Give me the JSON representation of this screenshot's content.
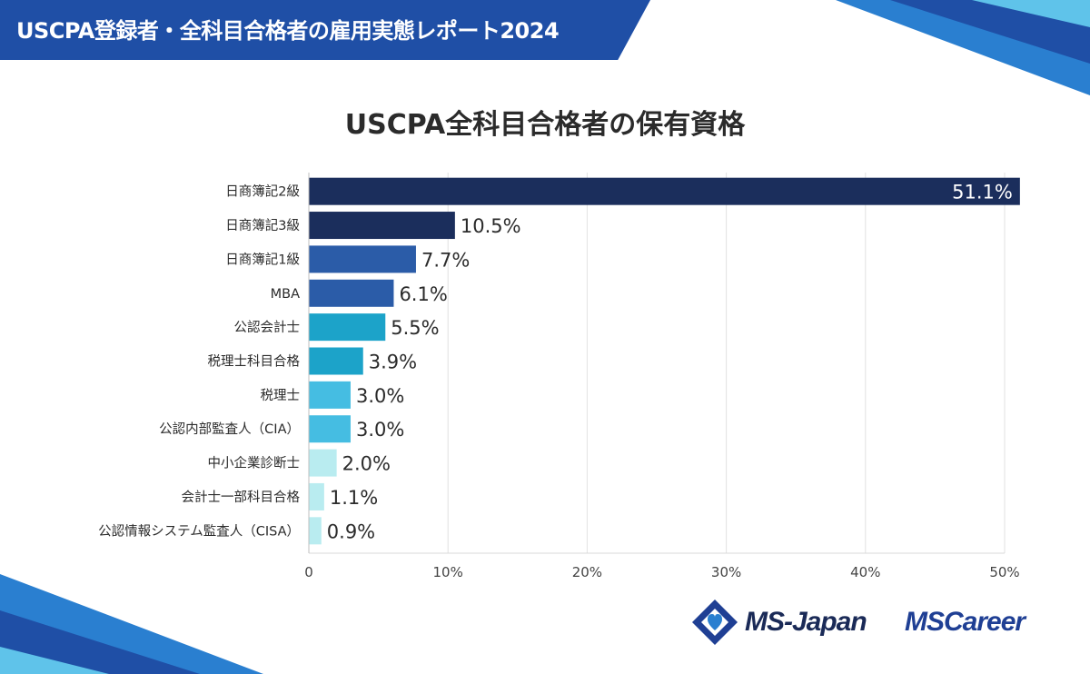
{
  "header": {
    "banner_title": "USCPA登録者・全科目合格者の雇用実態レポート2024"
  },
  "logos": {
    "ms_japan": "MS-Japan",
    "ms_career": "MSCareer"
  },
  "colors": {
    "banner": "#1f4fa6",
    "navy": "#1b2e5c",
    "blue": "#2b5ca8",
    "teal": "#1ca3c9",
    "sky": "#45bde2",
    "pale": "#b9ecf0"
  },
  "chart_data": {
    "type": "bar",
    "orientation": "horizontal",
    "title": "USCPA全科目合格者の保有資格",
    "categories": [
      "日商簿記2級",
      "日商簿記3級",
      "日商簿記1級",
      "MBA",
      "公認会計士",
      "税理士科目合格",
      "税理士",
      "公認内部監査人（CIA）",
      "中小企業診断士",
      "会計士一部科目合格",
      "公認情報システム監査人（CISA）"
    ],
    "values": [
      51.1,
      10.5,
      7.7,
      6.1,
      5.5,
      3.9,
      3.0,
      3.0,
      2.0,
      1.1,
      0.9
    ],
    "value_labels": [
      "51.1%",
      "10.5%",
      "7.7%",
      "6.1%",
      "5.5%",
      "3.9%",
      "3.0%",
      "3.0%",
      "2.0%",
      "1.1%",
      "0.9%"
    ],
    "bar_colors": [
      "#1b2e5c",
      "#1b2e5c",
      "#2b5ca8",
      "#2b5ca8",
      "#1ca3c9",
      "#1ca3c9",
      "#45bde2",
      "#45bde2",
      "#b9ecf0",
      "#b9ecf0",
      "#b9ecf0"
    ],
    "xlim": [
      0,
      50
    ],
    "xticks": [
      0,
      10,
      20,
      30,
      40,
      50
    ],
    "xtick_labels": [
      "0",
      "10%",
      "20%",
      "30%",
      "40%",
      "50%"
    ],
    "grid": true
  }
}
